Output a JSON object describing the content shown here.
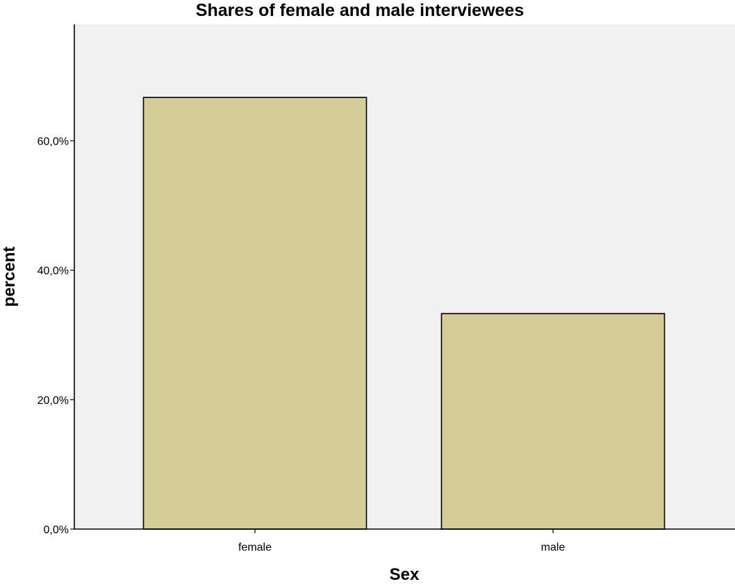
{
  "chart_data": {
    "type": "bar",
    "title": "Shares of female and male interviewees",
    "xlabel": "Sex",
    "ylabel": "percent",
    "categories": [
      "female",
      "male"
    ],
    "values": [
      66.7,
      33.3
    ],
    "ylim": [
      0,
      78
    ],
    "yticks": [
      0,
      20,
      40,
      60
    ],
    "ytick_labels": [
      "0,0%",
      "20,0%",
      "40,0%",
      "60,0%"
    ],
    "grid": false,
    "colors": {
      "bar_fill": "#d3cd98",
      "plot_background": "#f0f0f0",
      "page_background": "#ffffff"
    }
  }
}
